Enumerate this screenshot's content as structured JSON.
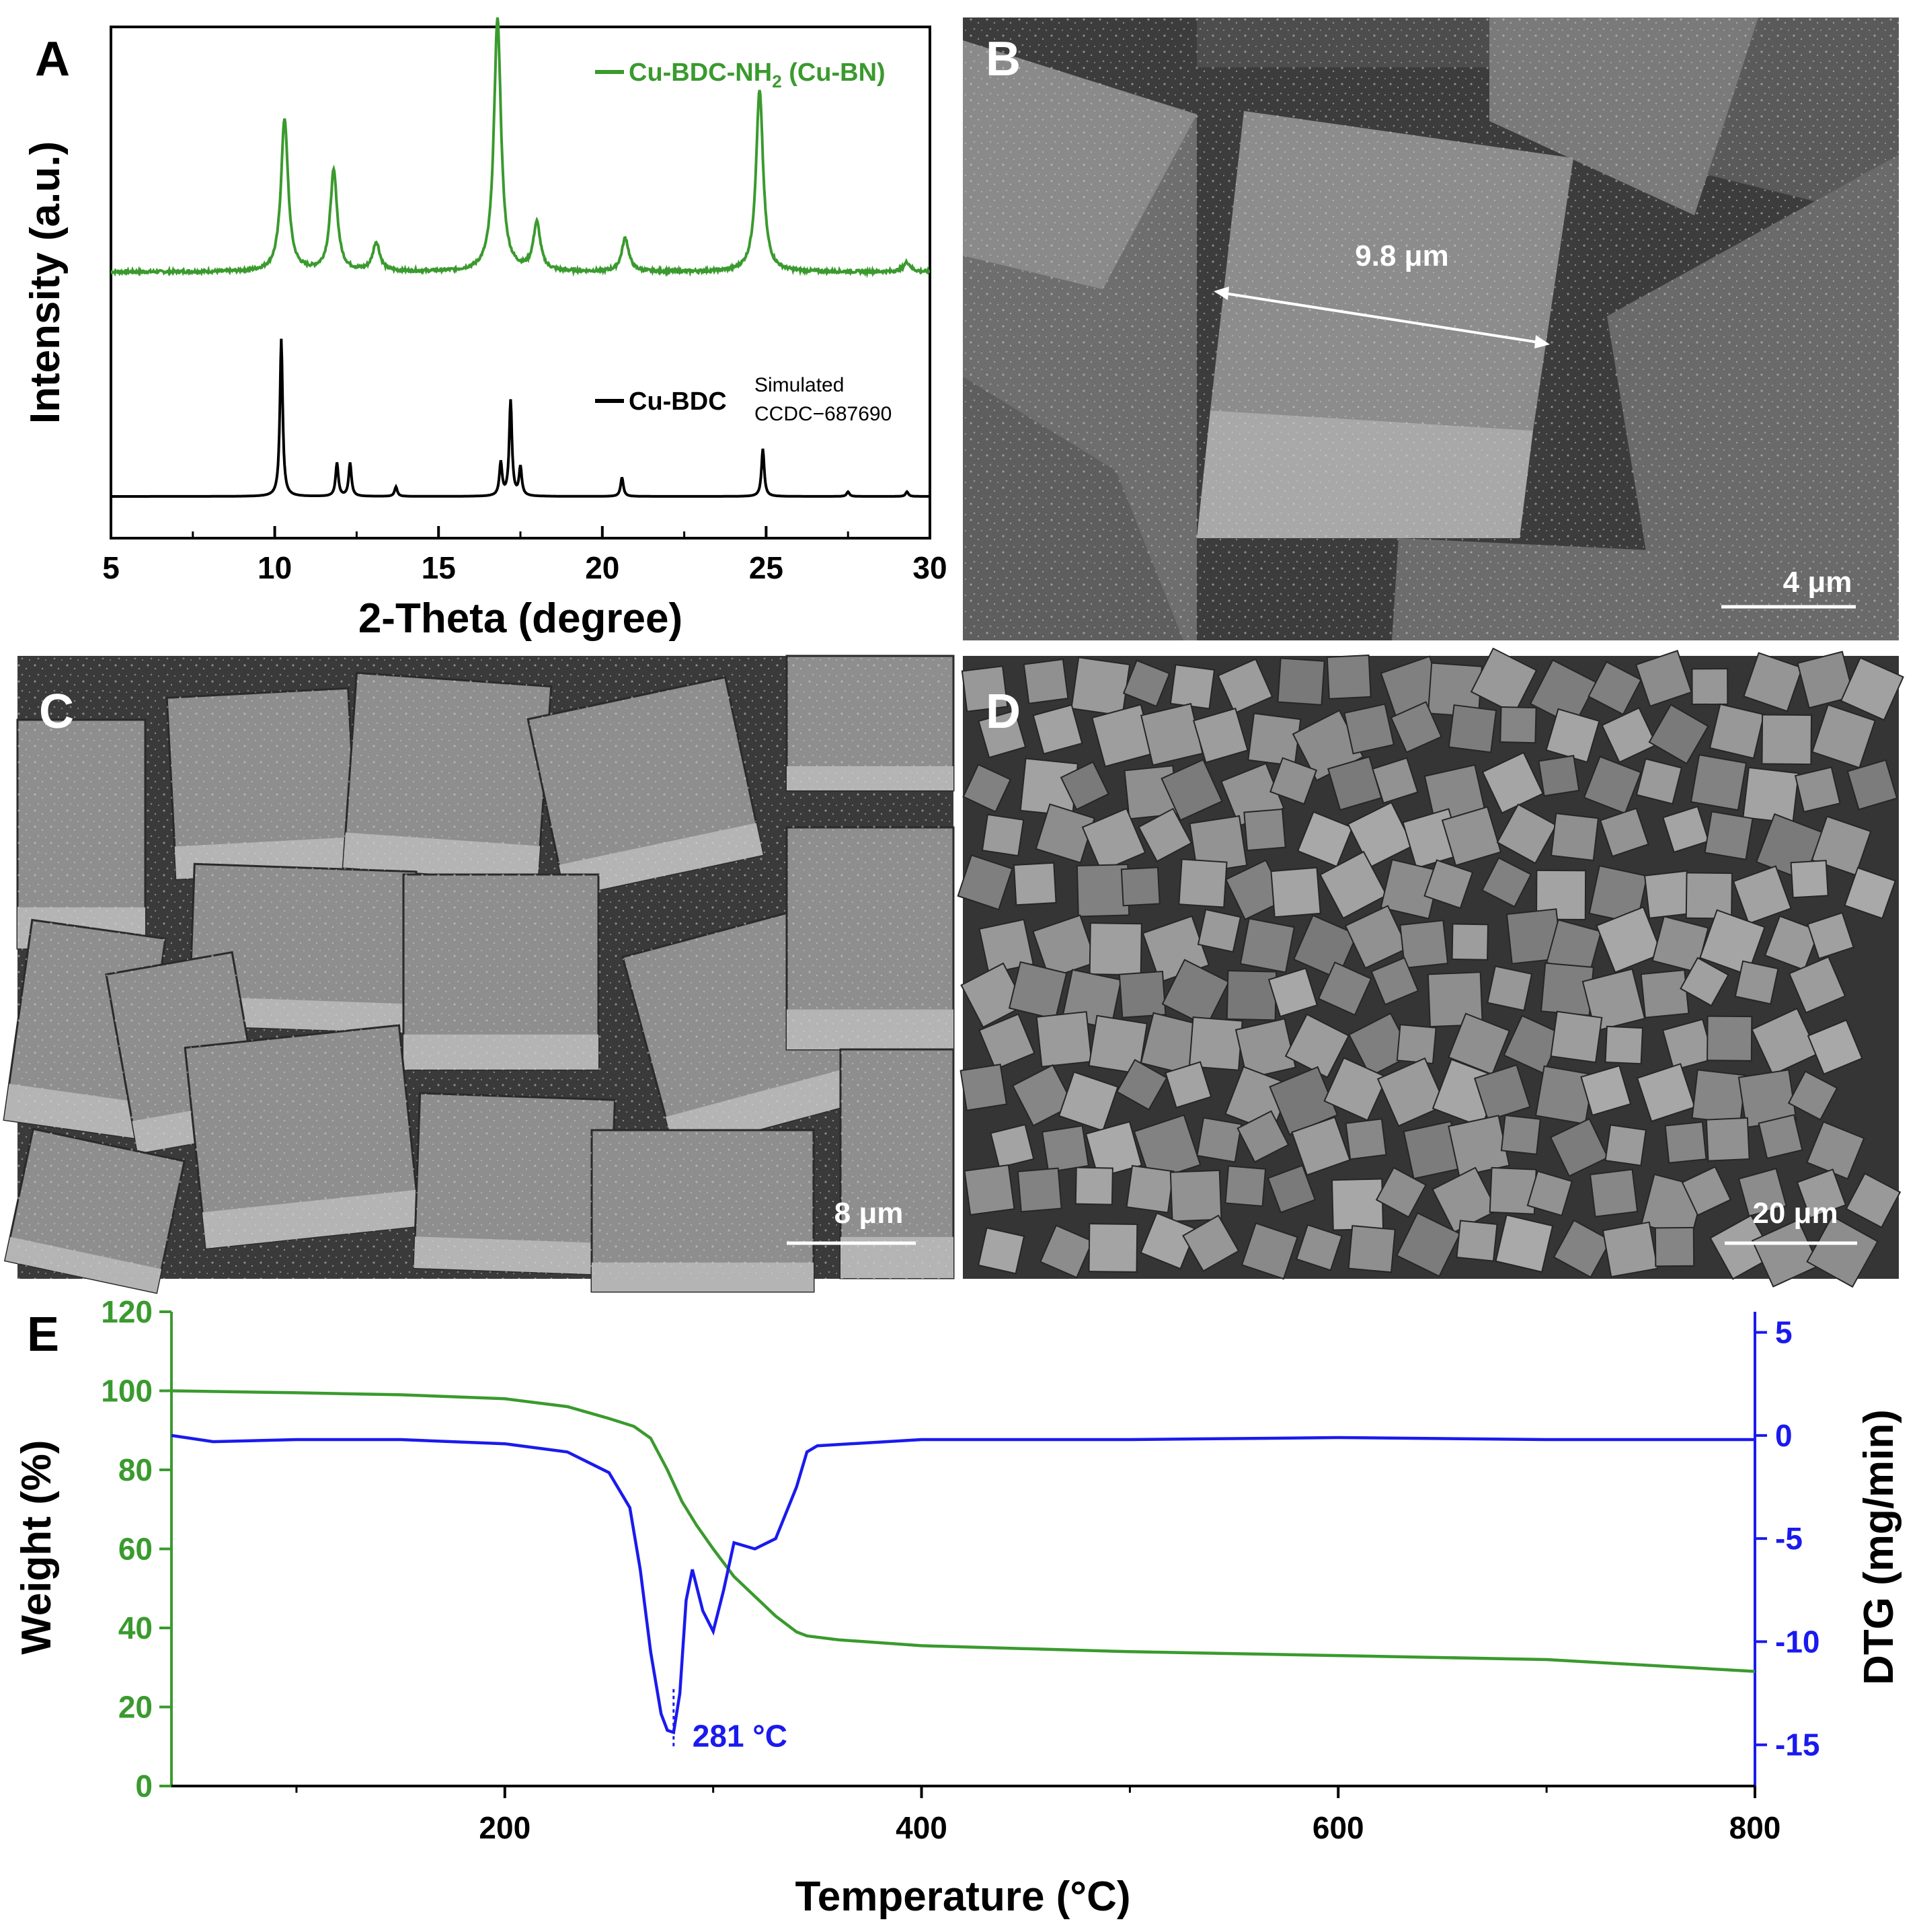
{
  "figure": {
    "panels": [
      {
        "letter": "A"
      },
      {
        "letter": "B",
        "measurement": "9.8 μm",
        "scale_bar": "4 μm"
      },
      {
        "letter": "C",
        "scale_bar": "8 μm"
      },
      {
        "letter": "D",
        "scale_bar": "20 μm"
      },
      {
        "letter": "E"
      }
    ]
  },
  "chart_data": [
    {
      "type": "line",
      "panel": "A",
      "xlabel": "2-Theta (degree)",
      "ylabel": "Intensity (a.u.)",
      "xlim": [
        5,
        30
      ],
      "xticks": [
        5,
        10,
        15,
        20,
        25,
        30
      ],
      "series": [
        {
          "name": "Cu-BDC-NH",
          "name_subscript": "2",
          "name_suffix": " (Cu-BN)",
          "color": "#3a9a2e",
          "baseline": 0.47,
          "peaks": [
            [
              10.3,
              0.32
            ],
            [
              11.8,
              0.21
            ],
            [
              13.1,
              0.06
            ],
            [
              16.8,
              0.53
            ],
            [
              18.0,
              0.1
            ],
            [
              20.7,
              0.07
            ],
            [
              24.8,
              0.38
            ],
            [
              29.3,
              0.02
            ]
          ]
        },
        {
          "name": "Cu-BDC",
          "annotation": [
            "Simulated",
            "CCDC−687690"
          ],
          "color": "#000000",
          "baseline": 0.0,
          "peaks": [
            [
              10.2,
              0.33
            ],
            [
              11.9,
              0.07
            ],
            [
              12.3,
              0.07
            ],
            [
              13.7,
              0.02
            ],
            [
              16.9,
              0.07
            ],
            [
              17.2,
              0.2
            ],
            [
              17.5,
              0.06
            ],
            [
              20.6,
              0.04
            ],
            [
              24.9,
              0.1
            ],
            [
              27.5,
              0.01
            ],
            [
              29.3,
              0.01
            ]
          ]
        }
      ]
    },
    {
      "type": "line",
      "panel": "E",
      "xlabel": "Temperature (°C)",
      "ylabel_left": "Weight (%)",
      "ylabel_right": "DTG (mg/min)",
      "xlim": [
        40,
        800
      ],
      "ylim_left": [
        0,
        120
      ],
      "ylim_right": [
        -17,
        6
      ],
      "xticks": [
        200,
        400,
        600,
        800
      ],
      "yticks_left": [
        0,
        20,
        40,
        60,
        80,
        100,
        120
      ],
      "yticks_right": [
        5,
        0,
        -5,
        -10,
        -15
      ],
      "annotation": "281 °C",
      "annotation_x": 281,
      "series": [
        {
          "name": "Weight",
          "axis": "left",
          "color": "#3a9a2e",
          "x": [
            40,
            100,
            150,
            200,
            230,
            250,
            262,
            270,
            278,
            285,
            292,
            300,
            310,
            320,
            330,
            340,
            345,
            360,
            400,
            500,
            600,
            700,
            800
          ],
          "y": [
            100,
            99.5,
            99,
            98,
            96,
            93,
            91,
            88,
            80,
            72,
            66,
            60,
            53,
            48,
            43,
            39,
            38,
            37,
            35.5,
            34,
            33,
            32,
            29
          ]
        },
        {
          "name": "DTG",
          "axis": "right",
          "color": "#1a1aee",
          "x": [
            40,
            60,
            100,
            150,
            200,
            230,
            250,
            260,
            265,
            270,
            275,
            278,
            281,
            284,
            287,
            290,
            295,
            300,
            305,
            310,
            320,
            330,
            340,
            345,
            350,
            400,
            500,
            600,
            700,
            750,
            800
          ],
          "y": [
            0,
            -0.3,
            -0.2,
            -0.2,
            -0.4,
            -0.8,
            -1.8,
            -3.5,
            -6.5,
            -10.5,
            -13.5,
            -14.3,
            -14.4,
            -12.5,
            -8.0,
            -6.5,
            -8.5,
            -9.5,
            -7.5,
            -5.2,
            -5.5,
            -5.0,
            -2.5,
            -0.8,
            -0.5,
            -0.2,
            -0.2,
            -0.1,
            -0.2,
            -0.2,
            -0.2
          ]
        }
      ]
    }
  ]
}
